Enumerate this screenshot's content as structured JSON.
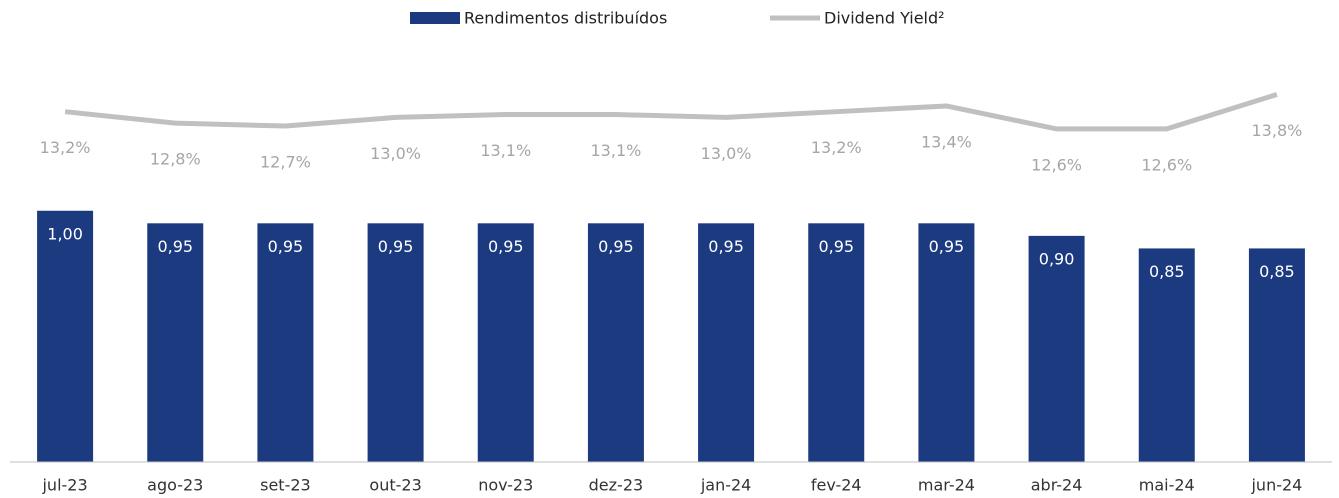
{
  "chart_data": {
    "type": "bar",
    "categories": [
      "jul-23",
      "ago-23",
      "set-23",
      "out-23",
      "nov-23",
      "dez-23",
      "jan-24",
      "fev-24",
      "mar-24",
      "abr-24",
      "mai-24",
      "jun-24"
    ],
    "series": [
      {
        "name": "Rendimentos distribuídos",
        "type": "bar",
        "color": "#1b3a80",
        "values": [
          1.0,
          0.95,
          0.95,
          0.95,
          0.95,
          0.95,
          0.95,
          0.95,
          0.95,
          0.9,
          0.85,
          0.85
        ],
        "value_labels": [
          "1,00",
          "0,95",
          "0,95",
          "0,95",
          "0,95",
          "0,95",
          "0,95",
          "0,95",
          "0,95",
          "0,90",
          "0,85",
          "0,85"
        ]
      },
      {
        "name": "Dividend Yield²",
        "type": "line",
        "axis": "y2",
        "color": "#c0c0c0",
        "values": [
          13.2,
          12.8,
          12.7,
          13.0,
          13.1,
          13.1,
          13.0,
          13.2,
          13.4,
          12.6,
          12.6,
          13.8
        ],
        "value_labels": [
          "13,2%",
          "12,8%",
          "12,7%",
          "13,0%",
          "13,1%",
          "13,1%",
          "13,0%",
          "13,2%",
          "13,4%",
          "12,6%",
          "12,6%",
          "13,8%"
        ]
      }
    ],
    "ylim": [
      0,
      1.6
    ],
    "y2lim": [
      1,
      15
    ],
    "legend": "top"
  }
}
